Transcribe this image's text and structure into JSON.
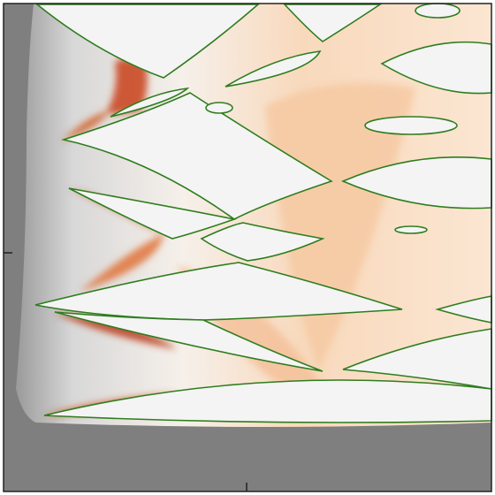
{
  "chart_data": {
    "type": "heatmap"
  }
}
